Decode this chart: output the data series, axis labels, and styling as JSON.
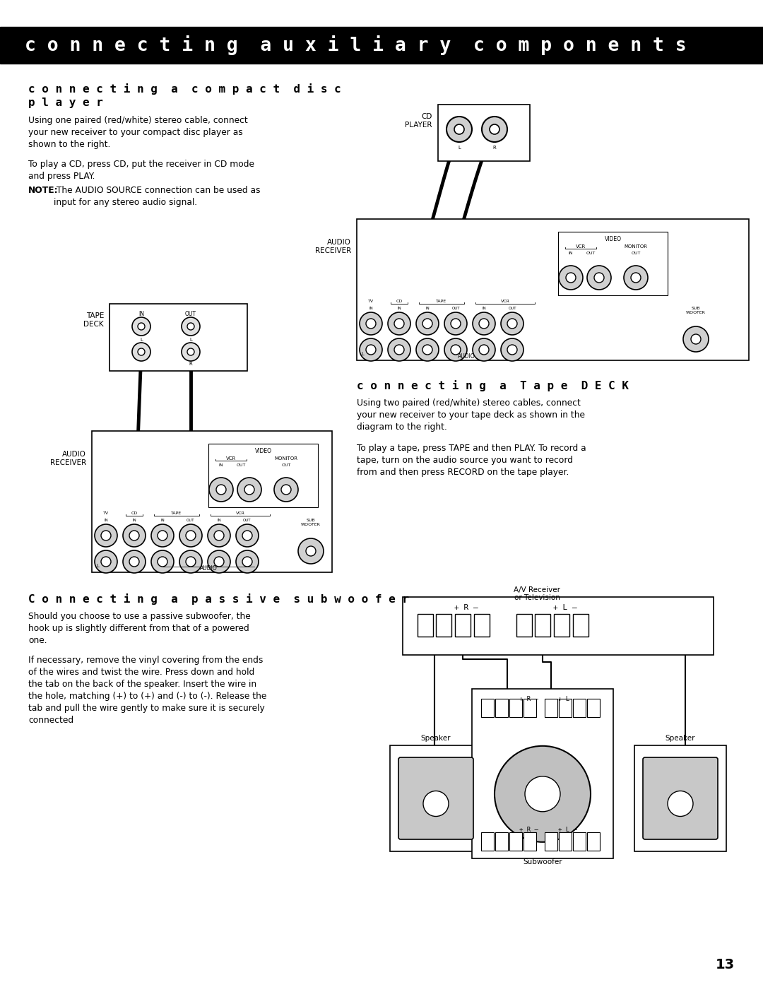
{
  "header_text": "c o n n e c t i n g  a u x i l i a r y  c o m p o n e n t s",
  "header_bg": "#000000",
  "header_text_color": "#ffffff",
  "page_bg": "#ffffff",
  "page_number": "13",
  "section1_title_line1": "c o n n e c t i n g  a  c o m p a c t  d i s c",
  "section1_title_line2": "p l a y e r",
  "section1_body1": "Using one paired (red/white) stereo cable, connect\nyour new receiver to your compact disc player as\nshown to the right.",
  "section1_body2": "To play a CD, press CD, put the receiver in CD mode\nand press PLAY.",
  "section1_body3_bold": "NOTE:",
  "section1_body3_rest": " The AUDIO SOURCE connection can be used as\ninput for any stereo audio signal.",
  "section2_title": "c o n n e c t i n g  a  T a p e  D E C K",
  "section2_body1": "Using two paired (red/white) stereo cables, connect\nyour new receiver to your tape deck as shown in the\ndiagram to the right.",
  "section2_body2": "To play a tape, press TAPE and then PLAY. To record a\ntape, turn on the audio source you want to record\nfrom and then press RECORD on the tape player.",
  "section3_title": "C o n n e c t i n g  a  p a s s i v e  s u b w o o f e r",
  "section3_body1": "Should you choose to use a passive subwoofer, the\nhook up is slightly different from that of a powered\none.",
  "section3_body2": "If necessary, remove the vinyl covering from the ends\nof the wires and twist the wire. Press down and hold\nthe tab on the back of the speaker. Insert the wire in\nthe hole, matching (+) to (+) and (-) to (-). Release the\ntab and pull the wire gently to make sure it is securely\nconnected"
}
